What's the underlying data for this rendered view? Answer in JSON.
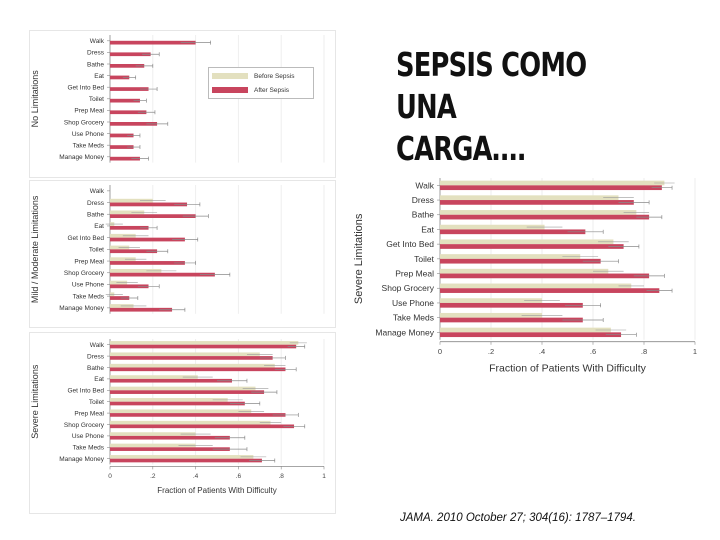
{
  "slide": {
    "title": "SEPSIS COMO UNA\nCARGA….",
    "citation": "JAMA. 2010 October 27; 304(16): 1787–1794."
  },
  "colors": {
    "before": "#e3e0bf",
    "after": "#c8455e",
    "error": "#8a8a8a",
    "axis": "#888888"
  },
  "legend": {
    "before": "Before Sepsis",
    "after": "After Sepsis"
  },
  "chart_data": [
    {
      "type": "bar",
      "orientation": "horizontal",
      "panel_label": "No Limitations",
      "categories": [
        "Walk",
        "Dress",
        "Bathe",
        "Eat",
        "Get Into Bed",
        "Toilet",
        "Prep Meal",
        "Shop Grocery",
        "Use Phone",
        "Take Meds",
        "Manage Money"
      ],
      "series": [
        {
          "name": "Before Sepsis",
          "values": [
            0,
            0,
            0,
            0,
            0,
            0,
            0,
            0,
            0,
            0,
            0
          ]
        },
        {
          "name": "After Sepsis",
          "values": [
            0.4,
            0.19,
            0.16,
            0.09,
            0.18,
            0.14,
            0.17,
            0.22,
            0.11,
            0.11,
            0.14
          ]
        }
      ],
      "error": [
        0.07,
        0.04,
        0.04,
        0.03,
        0.04,
        0.03,
        0.04,
        0.05,
        0.03,
        0.03,
        0.04
      ],
      "xlim": [
        0,
        1
      ]
    },
    {
      "type": "bar",
      "orientation": "horizontal",
      "panel_label": "Mild / Moderate Limitations",
      "categories": [
        "Walk",
        "Dress",
        "Bathe",
        "Eat",
        "Get Into Bed",
        "Toilet",
        "Prep Meal",
        "Shop Grocery",
        "Use Phone",
        "Take Meds",
        "Manage Money"
      ],
      "series": [
        {
          "name": "Before Sepsis",
          "values": [
            0,
            0.2,
            0.16,
            0.02,
            0.12,
            0.09,
            0.12,
            0.24,
            0.08,
            0.02,
            0.11
          ]
        },
        {
          "name": "After Sepsis",
          "values": [
            0,
            0.36,
            0.4,
            0.18,
            0.35,
            0.22,
            0.35,
            0.49,
            0.18,
            0.09,
            0.29
          ]
        }
      ],
      "error": [
        0,
        0.06,
        0.06,
        0.04,
        0.06,
        0.05,
        0.05,
        0.07,
        0.05,
        0.04,
        0.06
      ],
      "xlim": [
        0,
        1
      ]
    },
    {
      "type": "bar",
      "orientation": "horizontal",
      "panel_label": "Severe Limitations",
      "xlabel": "Fraction of Patients With Difficulty",
      "categories": [
        "Walk",
        "Dress",
        "Bathe",
        "Eat",
        "Get Into Bed",
        "Toilet",
        "Prep Meal",
        "Shop Grocery",
        "Use Phone",
        "Take Meds",
        "Manage Money"
      ],
      "series": [
        {
          "name": "Before Sepsis",
          "values": [
            0.88,
            0.7,
            0.77,
            0.41,
            0.68,
            0.55,
            0.66,
            0.75,
            0.4,
            0.4,
            0.67
          ]
        },
        {
          "name": "After Sepsis",
          "values": [
            0.87,
            0.76,
            0.82,
            0.57,
            0.72,
            0.63,
            0.82,
            0.86,
            0.56,
            0.56,
            0.71
          ]
        }
      ],
      "error": [
        0.04,
        0.06,
        0.05,
        0.07,
        0.06,
        0.07,
        0.06,
        0.05,
        0.07,
        0.08,
        0.06
      ],
      "xlim": [
        0,
        1
      ],
      "xticks": [
        "0",
        ".2",
        ".4",
        ".6",
        ".8",
        "1"
      ]
    },
    {
      "type": "bar",
      "orientation": "horizontal",
      "panel_label": "Severe Limitations",
      "xlabel": "Fraction of Patients With Difficulty",
      "categories": [
        "Walk",
        "Dress",
        "Bathe",
        "Eat",
        "Get Into Bed",
        "Toilet",
        "Prep Meal",
        "Shop Grocery",
        "Use Phone",
        "Take Meds",
        "Manage Money"
      ],
      "series": [
        {
          "name": "Before Sepsis",
          "values": [
            0.88,
            0.7,
            0.77,
            0.41,
            0.68,
            0.55,
            0.66,
            0.75,
            0.4,
            0.4,
            0.67
          ]
        },
        {
          "name": "After Sepsis",
          "values": [
            0.87,
            0.76,
            0.82,
            0.57,
            0.72,
            0.63,
            0.82,
            0.86,
            0.56,
            0.56,
            0.71
          ]
        }
      ],
      "error": [
        0.04,
        0.06,
        0.05,
        0.07,
        0.06,
        0.07,
        0.06,
        0.05,
        0.07,
        0.08,
        0.06
      ],
      "xlim": [
        0,
        1
      ],
      "xticks": [
        "0",
        ".2",
        ".4",
        ".6",
        ".8",
        "1"
      ]
    }
  ]
}
